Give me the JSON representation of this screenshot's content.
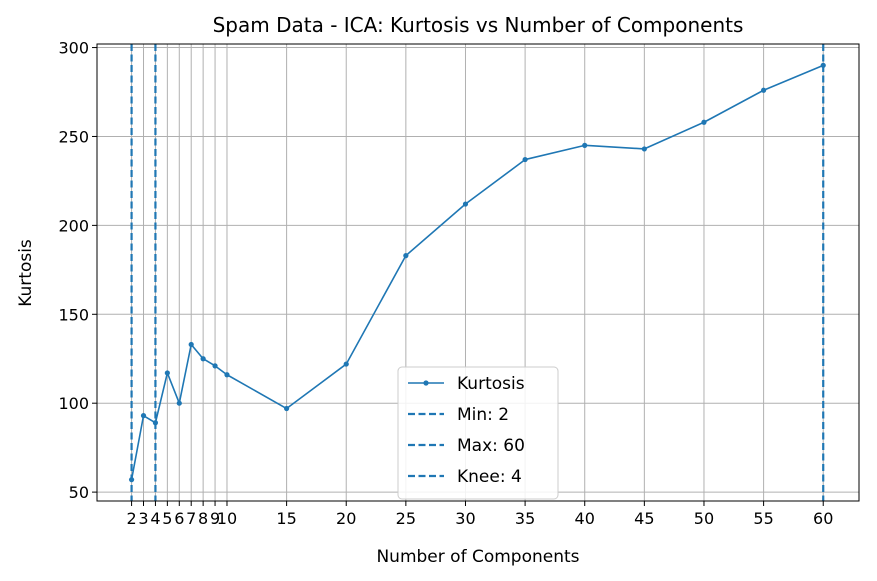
{
  "chart_data": {
    "type": "line",
    "title": "Spam Data - ICA: Kurtosis vs Number of Components",
    "xlabel": "Number of Components",
    "ylabel": "Kurtosis",
    "xlim": [
      -0.9,
      63
    ],
    "ylim": [
      45,
      302
    ],
    "grid": true,
    "legend_position": "lower-center",
    "x_ticks": [
      2,
      3,
      4,
      5,
      6,
      7,
      8,
      9,
      10,
      15,
      20,
      25,
      30,
      35,
      40,
      45,
      50,
      55,
      60
    ],
    "x_tick_labels": [
      "2",
      "3",
      "4",
      "5",
      "6",
      "7",
      "8",
      "9",
      "10",
      "15",
      "20",
      "25",
      "30",
      "35",
      "40",
      "45",
      "50",
      "55",
      "60"
    ],
    "y_ticks": [
      50,
      100,
      150,
      200,
      250,
      300
    ],
    "y_tick_labels": [
      "50",
      "100",
      "150",
      "200",
      "250",
      "300"
    ],
    "series": [
      {
        "name": "Kurtosis",
        "color": "#1f77b4",
        "x": [
          2,
          3,
          4,
          5,
          6,
          7,
          8,
          9,
          10,
          15,
          20,
          25,
          30,
          35,
          40,
          45,
          50,
          55,
          60
        ],
        "y": [
          57,
          93,
          89,
          117,
          100,
          133,
          125,
          121,
          116,
          97,
          122,
          183,
          212,
          237,
          245,
          243,
          258,
          276,
          290
        ]
      }
    ],
    "vlines": [
      {
        "name": "Min: 2",
        "x": 2,
        "color": "#1f77b4"
      },
      {
        "name": "Max: 60",
        "x": 60,
        "color": "#1f77b4"
      },
      {
        "name": "Knee: 4",
        "x": 4,
        "color": "#1f77b4"
      }
    ]
  }
}
